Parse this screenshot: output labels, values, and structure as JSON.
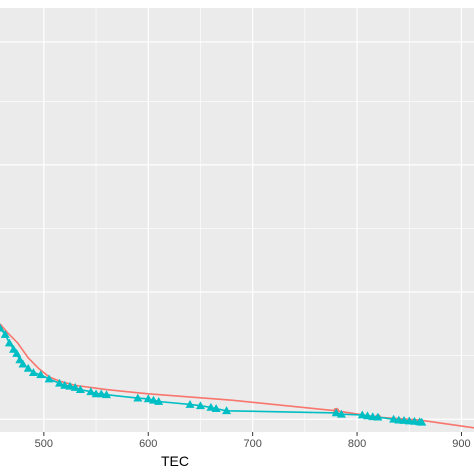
{
  "chart_data": {
    "type": "line",
    "xlabel": "TEC",
    "ylabel": "",
    "xlim": [
      458,
      912
    ],
    "ylim": [
      0,
      1
    ],
    "x_ticks": [
      500,
      600,
      700,
      800,
      900
    ],
    "x_tick_labels": [
      "500",
      "600",
      "700",
      "800",
      "900"
    ],
    "y_major_ticks": [
      0.03,
      0.33,
      0.63,
      0.92
    ],
    "y_minor_ticks": [
      0.18,
      0.48,
      0.78
    ],
    "grid": true,
    "panel_background": "#ebebeb",
    "grid_color": "#ffffff",
    "legend": "none",
    "series": [
      {
        "color": "#f8766d",
        "marker": "circle",
        "x": [
          458,
          465,
          475,
          485,
          495,
          505,
          515,
          530,
          560,
          600,
          680,
          780,
          820,
          860,
          912
        ],
        "y": [
          0.255,
          0.235,
          0.21,
          0.175,
          0.15,
          0.13,
          0.12,
          0.11,
          0.1,
          0.09,
          0.075,
          0.05,
          0.035,
          0.028,
          0.01
        ],
        "points_x": [
          780,
          820
        ],
        "points_y": [
          0.05,
          0.035
        ]
      },
      {
        "color": "#00bfc4",
        "marker": "triangle",
        "x": [
          458,
          463,
          467,
          471,
          474,
          477,
          480,
          485,
          490,
          497,
          505,
          515,
          520,
          525,
          530,
          535,
          545,
          550,
          555,
          560,
          590,
          600,
          605,
          610,
          640,
          650,
          660,
          665,
          675,
          780,
          785,
          805,
          810,
          815,
          820,
          835,
          840,
          845,
          850,
          855,
          860,
          862
        ],
        "y": [
          0.245,
          0.23,
          0.21,
          0.195,
          0.185,
          0.17,
          0.16,
          0.15,
          0.14,
          0.135,
          0.125,
          0.115,
          0.11,
          0.108,
          0.105,
          0.1,
          0.095,
          0.09,
          0.09,
          0.088,
          0.08,
          0.078,
          0.075,
          0.072,
          0.065,
          0.062,
          0.058,
          0.055,
          0.05,
          0.045,
          0.042,
          0.04,
          0.038,
          0.036,
          0.035,
          0.03,
          0.028,
          0.027,
          0.026,
          0.025,
          0.024,
          0.023
        ]
      }
    ]
  }
}
